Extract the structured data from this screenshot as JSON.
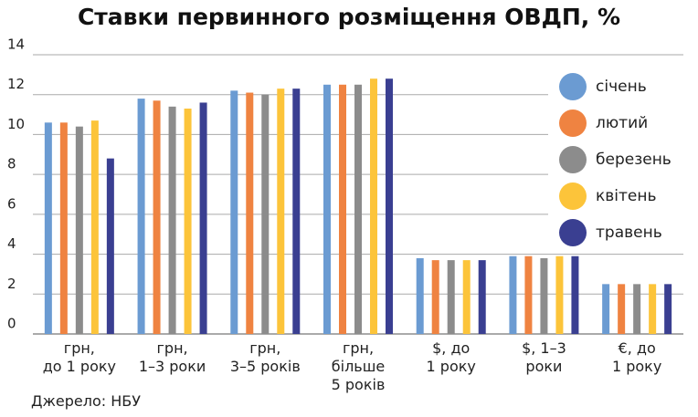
{
  "chart_data": {
    "type": "bar",
    "title": "Ставки первинного розміщення ОВДП, %",
    "source": "Джерело: НБУ",
    "categories": [
      "грн,\nдо 1 року",
      "грн,\n1–3 роки",
      "грн,\n3–5 років",
      "грн,\nбільше\n5 років",
      "$, до\n1 року",
      "$, 1–3\nроки",
      "€, до\n1 року"
    ],
    "series": [
      {
        "name": "січень",
        "color": "#6b9bd2",
        "values": [
          10.6,
          11.8,
          12.2,
          12.5,
          3.8,
          3.9,
          2.5
        ]
      },
      {
        "name": "лютий",
        "color": "#ef8341",
        "values": [
          10.6,
          11.7,
          12.1,
          12.5,
          3.7,
          3.9,
          2.5
        ]
      },
      {
        "name": "березень",
        "color": "#8c8c8c",
        "values": [
          10.4,
          11.4,
          12.0,
          12.5,
          3.7,
          3.8,
          2.5
        ]
      },
      {
        "name": "квітень",
        "color": "#fcc43a",
        "values": [
          10.7,
          11.3,
          12.3,
          12.8,
          3.7,
          3.9,
          2.5
        ]
      },
      {
        "name": "травень",
        "color": "#3a3f91",
        "values": [
          8.8,
          11.6,
          12.3,
          12.8,
          3.7,
          3.9,
          2.5
        ]
      }
    ],
    "ylim": [
      0,
      14
    ],
    "yticks": [
      0,
      2,
      4,
      6,
      8,
      10,
      12,
      14
    ],
    "grid": true,
    "legend": "right"
  }
}
